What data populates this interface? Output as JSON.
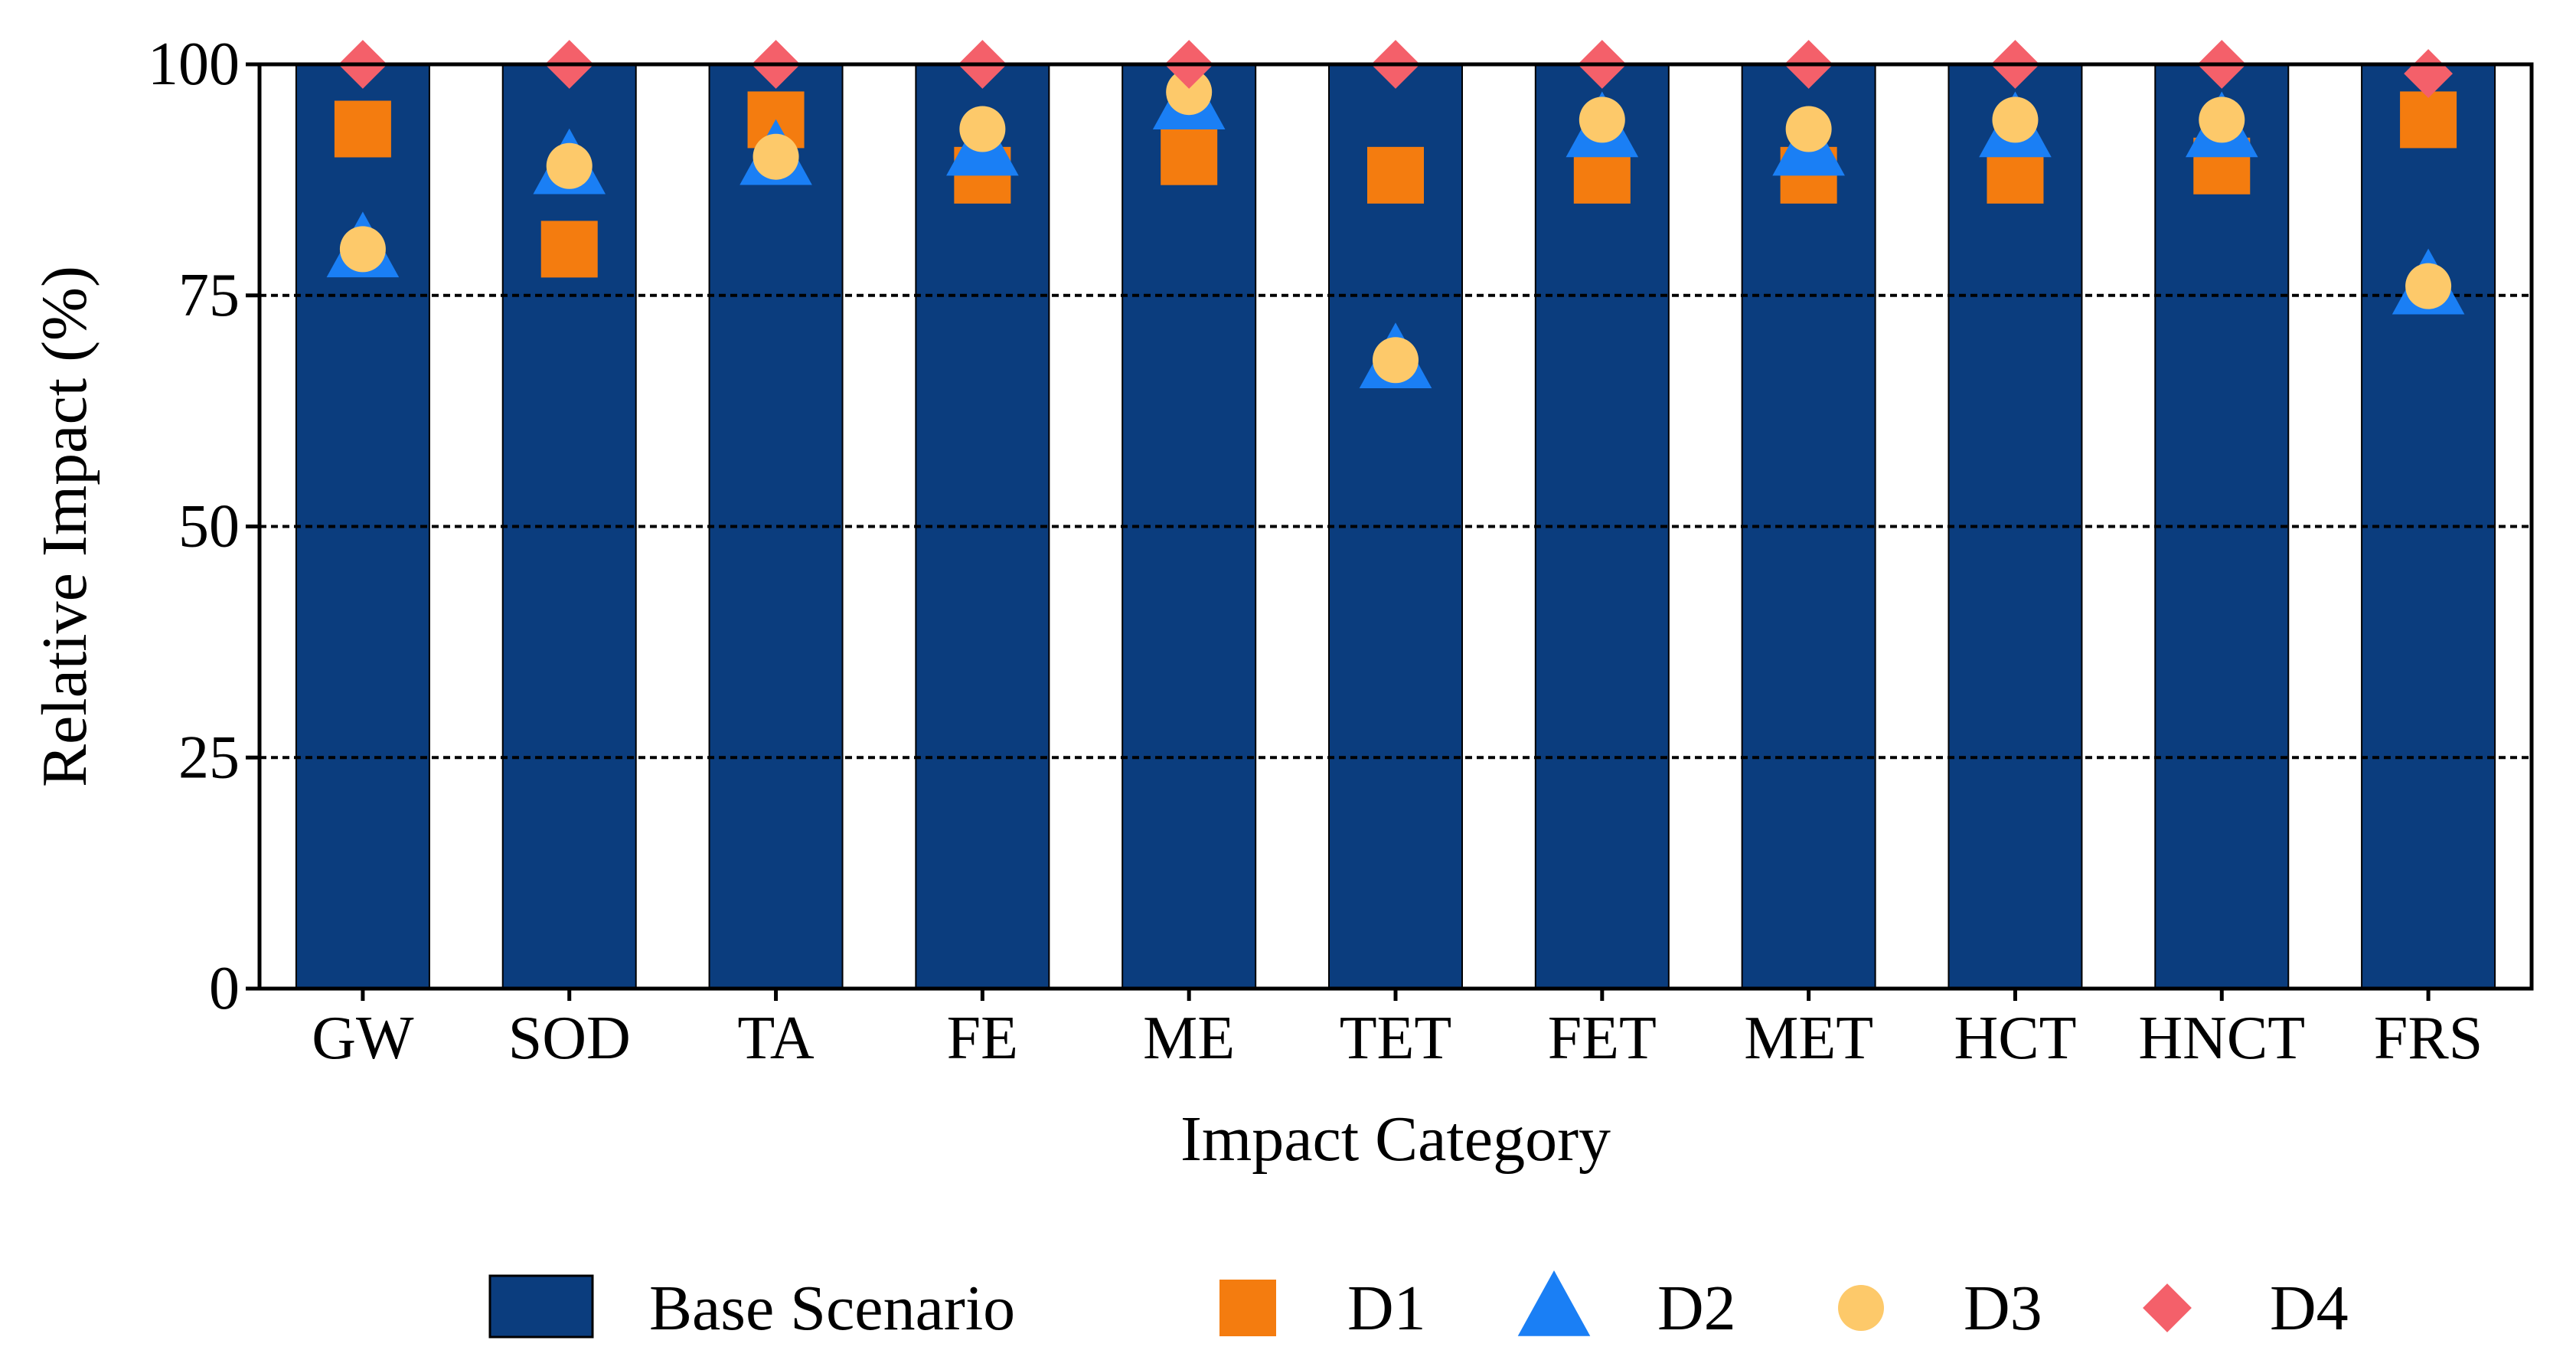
{
  "chart_data": {
    "type": "bar",
    "title": "",
    "xlabel": "Impact Category",
    "ylabel": "Relative Impact (%)",
    "ylim": [
      0,
      100
    ],
    "yticks": [
      0,
      25,
      50,
      75,
      100
    ],
    "categories": [
      "GW",
      "SOD",
      "TA",
      "FE",
      "ME",
      "TET",
      "FET",
      "MET",
      "HCT",
      "HNCT",
      "FRS"
    ],
    "bar_series": {
      "name": "Base Scenario",
      "color": "#0b3d7e",
      "values": [
        100,
        100,
        100,
        100,
        100,
        100,
        100,
        100,
        100,
        100,
        100
      ]
    },
    "series": [
      {
        "name": "D1",
        "marker": "square",
        "color": "#f47c0f",
        "values": [
          93,
          80,
          94,
          88,
          90,
          88,
          88,
          88,
          88,
          89,
          94
        ]
      },
      {
        "name": "D2",
        "marker": "triangle",
        "color": "#1a7ff5",
        "values": [
          80,
          89,
          90,
          91,
          96,
          68,
          93,
          91,
          93,
          93,
          76
        ]
      },
      {
        "name": "D3",
        "marker": "circle",
        "color": "#fdc96a",
        "values": [
          80,
          89,
          90,
          93,
          97,
          68,
          94,
          93,
          94,
          94,
          76
        ]
      },
      {
        "name": "D4",
        "marker": "diamond",
        "color": "#f4606a",
        "values": [
          100,
          100,
          100,
          100,
          100,
          100,
          100,
          100,
          100,
          100,
          99
        ]
      }
    ],
    "grid": "dashed horizontal at 25, 50, 75",
    "legend": [
      "Base Scenario",
      "D1",
      "D2",
      "D3",
      "D4"
    ],
    "legend_position": "bottom"
  }
}
